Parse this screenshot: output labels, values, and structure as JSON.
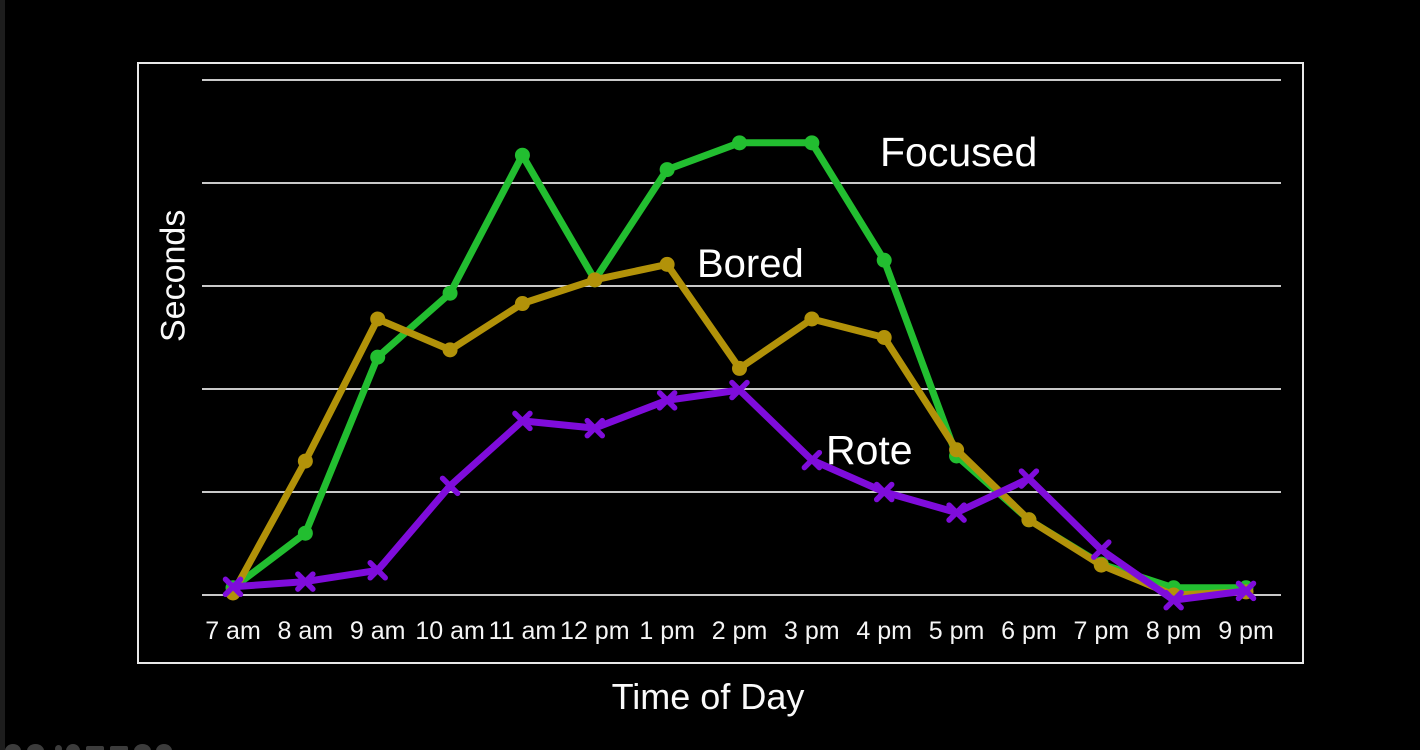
{
  "chart_data": {
    "type": "line",
    "title": "",
    "xlabel": "Time of Day",
    "ylabel": "Seconds",
    "categories": [
      "7 am",
      "8 am",
      "9 am",
      "10 am",
      "11 am",
      "12 pm",
      "1 pm",
      "2 pm",
      "3 pm",
      "4 pm",
      "5 pm",
      "6 pm",
      "7 pm",
      "8 pm",
      "9 pm"
    ],
    "y_axis": {
      "tick_labels_visible": false,
      "gridline_count": 6,
      "unit_range": [
        0,
        5
      ],
      "note": "no numeric tick labels shown; values are in gridline units (0 = baseline, 5 = top gridline)"
    },
    "grid": true,
    "legend_position": "inline-labels-on-plot",
    "background_color": "#000000",
    "frame_color": "#e8e8e8",
    "gridline_color": "#c9c9c9",
    "text_color": "#fafafa",
    "series": [
      {
        "name": "Focused",
        "color": "#22be30",
        "marker": "circle",
        "values": [
          0.07,
          0.6,
          2.31,
          2.93,
          4.27,
          3.06,
          4.13,
          4.39,
          4.39,
          3.25,
          1.35,
          0.73,
          0.3,
          0.07,
          0.07
        ]
      },
      {
        "name": "Bored",
        "color": "#b29209",
        "marker": "circle",
        "values": [
          0.02,
          1.3,
          2.68,
          2.38,
          2.83,
          3.06,
          3.21,
          2.2,
          2.68,
          2.5,
          1.41,
          0.73,
          0.29,
          0.0,
          0.03
        ]
      },
      {
        "name": "Rote",
        "color": "#7f0cdb",
        "marker": "x",
        "values": [
          0.08,
          0.13,
          0.24,
          1.06,
          1.69,
          1.62,
          1.89,
          1.99,
          1.31,
          1.0,
          0.8,
          1.13,
          0.44,
          -0.05,
          0.04
        ]
      }
    ]
  }
}
